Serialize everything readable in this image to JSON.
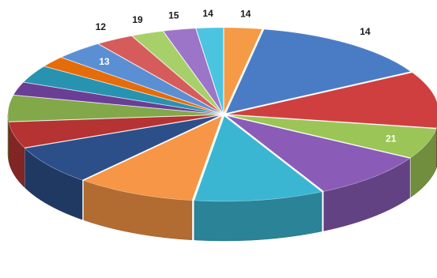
{
  "chart_data": {
    "type": "pie",
    "style": "3d-exploded",
    "legend": "none",
    "slices": [
      {
        "label": "14",
        "value": 3.5,
        "color": "#F59A45"
      },
      {
        "label": "14",
        "value": 17.0,
        "color": "#4A7CC6"
      },
      {
        "label": "",
        "value": 13.0,
        "color": "#CF3F3F"
      },
      {
        "label": "21",
        "value": 7.0,
        "color": "#9BC556"
      },
      {
        "label": "",
        "value": 11.0,
        "color": "#8A5CB8"
      },
      {
        "label": "",
        "value": 12.0,
        "color": "#3BB6D2"
      },
      {
        "label": "",
        "value": 11.0,
        "color": "#F79646"
      },
      {
        "label": "",
        "value": 9.0,
        "color": "#2C4F8A"
      },
      {
        "label": "",
        "value": 6.0,
        "color": "#B53333"
      },
      {
        "label": "",
        "value": 6.0,
        "color": "#82A84A"
      },
      {
        "label": "",
        "value": 3.0,
        "color": "#6B3E96"
      },
      {
        "label": "",
        "value": 4.0,
        "color": "#2893B0"
      },
      {
        "label": "",
        "value": 2.5,
        "color": "#E46C0A"
      },
      {
        "label": "13",
        "value": 4.5,
        "color": "#5B8FD4"
      },
      {
        "label": "12",
        "value": 3.5,
        "color": "#D65C5C"
      },
      {
        "label": "19",
        "value": 3.0,
        "color": "#A8D06A"
      },
      {
        "label": "15",
        "value": 3.0,
        "color": "#9C74C8"
      },
      {
        "label": "14",
        "value": 2.5,
        "color": "#4BC4E0"
      }
    ]
  }
}
